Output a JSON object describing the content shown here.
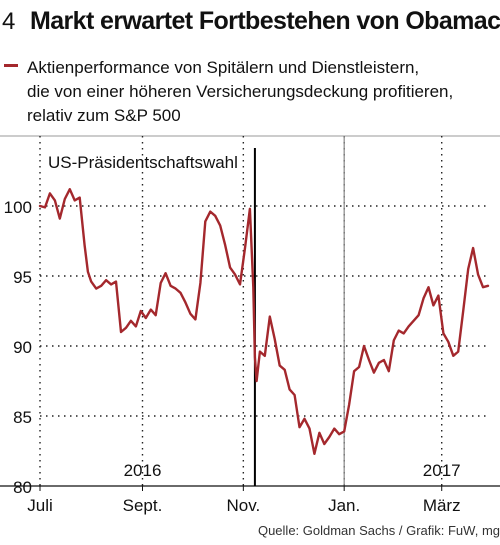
{
  "header": {
    "number": "4",
    "title": "Markt erwartet Fortbestehen von Obamacare"
  },
  "source": "Quelle: Goldman Sachs / Grafik: FuW, mg",
  "chart_data": {
    "type": "line",
    "series": [
      {
        "name": "",
        "color": "#a4282d",
        "x": [
          "2016-07-01",
          "2016-07-04",
          "2016-07-07",
          "2016-07-10",
          "2016-07-13",
          "2016-07-16",
          "2016-07-19",
          "2016-07-22",
          "2016-07-25",
          "2016-07-28",
          "2016-07-30",
          "2016-08-01",
          "2016-08-04",
          "2016-08-07",
          "2016-08-10",
          "2016-08-13",
          "2016-08-16",
          "2016-08-19",
          "2016-08-22",
          "2016-08-25",
          "2016-08-28",
          "2016-08-31",
          "2016-09-03",
          "2016-09-06",
          "2016-09-09",
          "2016-09-12",
          "2016-09-15",
          "2016-09-18",
          "2016-09-21",
          "2016-09-24",
          "2016-09-27",
          "2016-09-30",
          "2016-10-03",
          "2016-10-06",
          "2016-10-09",
          "2016-10-12",
          "2016-10-15",
          "2016-10-18",
          "2016-10-21",
          "2016-10-24",
          "2016-10-27",
          "2016-10-30",
          "2016-11-02",
          "2016-11-05",
          "2016-11-07",
          "2016-11-08",
          "2016-11-09",
          "2016-11-11",
          "2016-11-14",
          "2016-11-17",
          "2016-11-20",
          "2016-11-23",
          "2016-11-26",
          "2016-11-29",
          "2016-12-02",
          "2016-12-05",
          "2016-12-08",
          "2016-12-11",
          "2016-12-14",
          "2016-12-17",
          "2016-12-20",
          "2016-12-23",
          "2016-12-26",
          "2016-12-29",
          "2017-01-01",
          "2017-01-04",
          "2017-01-07",
          "2017-01-10",
          "2017-01-13",
          "2017-01-16",
          "2017-01-19",
          "2017-01-22",
          "2017-01-25",
          "2017-01-28",
          "2017-01-31",
          "2017-02-03",
          "2017-02-06",
          "2017-02-09",
          "2017-02-12",
          "2017-02-15",
          "2017-02-18",
          "2017-02-21",
          "2017-02-24",
          "2017-02-27",
          "2017-03-02",
          "2017-03-05",
          "2017-03-08",
          "2017-03-11",
          "2017-03-14",
          "2017-03-17",
          "2017-03-20",
          "2017-03-23",
          "2017-03-26",
          "2017-03-29"
        ],
        "values": [
          100.0,
          99.9,
          100.9,
          100.4,
          99.1,
          100.5,
          101.2,
          100.4,
          100.6,
          97.2,
          95.3,
          94.6,
          94.1,
          94.3,
          94.7,
          94.4,
          94.6,
          91.0,
          91.3,
          91.8,
          91.4,
          92.5,
          92.0,
          92.6,
          92.2,
          94.5,
          95.2,
          94.3,
          94.1,
          93.8,
          93.1,
          92.3,
          91.9,
          94.5,
          98.9,
          99.6,
          99.3,
          98.6,
          97.2,
          95.6,
          95.1,
          94.4,
          97.0,
          99.8,
          94.2,
          89.2,
          87.5,
          89.6,
          89.3,
          92.1,
          90.5,
          88.6,
          88.3,
          86.9,
          86.5,
          84.2,
          84.8,
          84.1,
          82.3,
          83.8,
          83.0,
          83.5,
          84.1,
          83.7,
          83.9,
          85.8,
          88.2,
          88.5,
          90.0,
          89.0,
          88.1,
          88.8,
          89.0,
          88.2,
          90.4,
          91.1,
          90.9,
          91.4,
          91.8,
          92.2,
          93.4,
          94.2,
          92.9,
          93.6,
          90.9,
          90.3,
          89.3,
          89.6,
          92.5,
          95.5,
          97.0,
          95.1,
          94.2,
          94.3
        ]
      }
    ],
    "legend": [
      "Aktienperformance von Spitälern und Dienstleistern,",
      "die von einer höheren Versicherungsdeckung profitieren,",
      "relativ zum S&P 500"
    ],
    "x_ticks": [
      "Juli",
      "Sept.",
      "Nov.",
      "Jan.",
      "März"
    ],
    "x_tick_dates": [
      "2016-07-01",
      "2016-09-01",
      "2016-11-01",
      "2017-01-01",
      "2017-03-01"
    ],
    "year_labels": [
      {
        "label": "2016",
        "date": "2016-09-01"
      },
      {
        "label": "2017",
        "date": "2017-03-01"
      }
    ],
    "y_ticks": [
      "80",
      "85",
      "90",
      "95",
      "100"
    ],
    "ylim": [
      80,
      105
    ],
    "xlim": [
      "2016-07-01",
      "2017-03-29"
    ],
    "annotation": {
      "text": "US-Präsidentschaftswahl",
      "date": "2016-11-08"
    },
    "year_divider": "2017-01-01",
    "grid": "dotted"
  }
}
